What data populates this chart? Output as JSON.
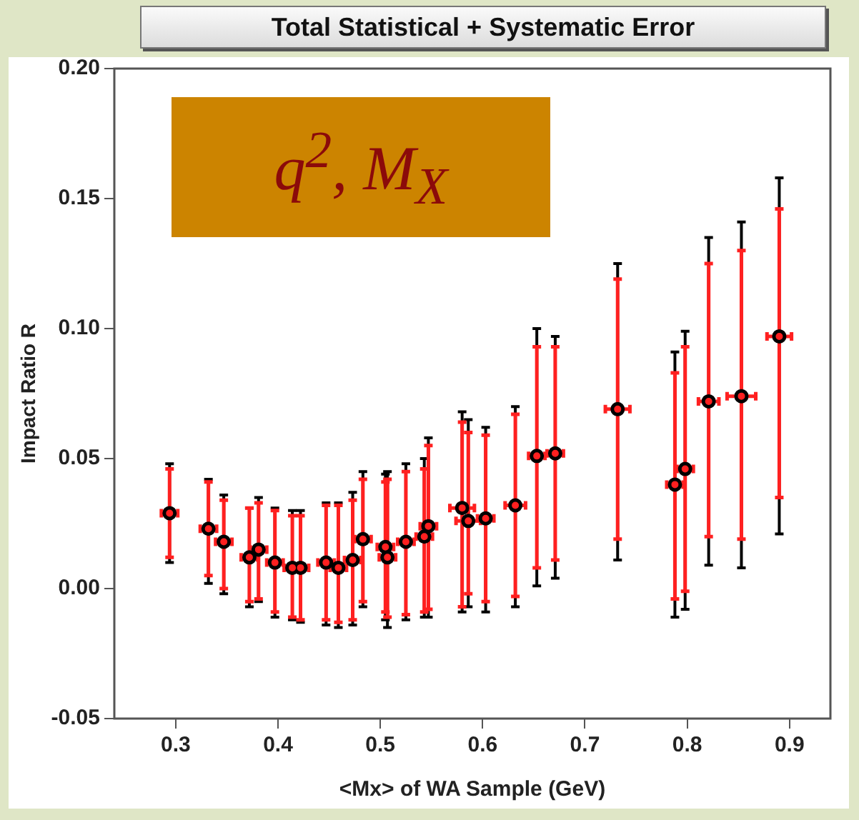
{
  "chart_data": {
    "type": "scatter",
    "title": "Total Statistical + Systematic Error",
    "xlabel": "<Mx> of WA Sample (GeV)",
    "ylabel": "Impact Ratio R",
    "annotations": [
      "q$^{2}$, M$_{X}$"
    ],
    "x": [
      0.294,
      0.332,
      0.347,
      0.372,
      0.381,
      0.397,
      0.414,
      0.422,
      0.447,
      0.459,
      0.473,
      0.483,
      0.505,
      0.507,
      0.525,
      0.543,
      0.547,
      0.58,
      0.586,
      0.603,
      0.632,
      0.653,
      0.671,
      0.732,
      0.788,
      0.798,
      0.821,
      0.853,
      0.89
    ],
    "series": [
      {
        "color": "#000000",
        "marker": "circle",
        "values": [
          0.029,
          0.023,
          0.018,
          0.012,
          0.015,
          0.01,
          0.008,
          0.008,
          0.01,
          0.008,
          0.011,
          0.019,
          0.016,
          0.012,
          0.018,
          0.02,
          0.024,
          0.031,
          0.026,
          0.027,
          0.032,
          0.051,
          0.052,
          0.069,
          0.04,
          0.046,
          0.072,
          0.074,
          0.097
        ],
        "errors": [
          [
            0.01,
            0.048
          ],
          [
            0.002,
            0.042
          ],
          [
            -0.002,
            0.036
          ],
          [
            -0.007,
            0.031
          ],
          [
            -0.005,
            0.035
          ],
          [
            -0.011,
            0.031
          ],
          [
            -0.012,
            0.03
          ],
          [
            -0.013,
            0.03
          ],
          [
            -0.014,
            0.033
          ],
          [
            -0.015,
            0.033
          ],
          [
            -0.014,
            0.037
          ],
          [
            -0.007,
            0.045
          ],
          [
            -0.012,
            0.044
          ],
          [
            -0.015,
            0.045
          ],
          [
            -0.012,
            0.048
          ],
          [
            -0.011,
            0.05
          ],
          [
            -0.011,
            0.058
          ],
          [
            -0.009,
            0.068
          ],
          [
            -0.007,
            0.065
          ],
          [
            -0.009,
            0.062
          ],
          [
            -0.007,
            0.07
          ],
          [
            0.001,
            0.1
          ],
          [
            0.004,
            0.097
          ],
          [
            0.011,
            0.125
          ],
          [
            -0.011,
            0.091
          ],
          [
            -0.008,
            0.099
          ],
          [
            0.009,
            0.135
          ],
          [
            0.008,
            0.141
          ],
          [
            0.021,
            0.158
          ]
        ]
      },
      {
        "color": "#ff2020",
        "marker": "circle",
        "values": [
          0.029,
          0.023,
          0.018,
          0.012,
          0.015,
          0.01,
          0.008,
          0.008,
          0.01,
          0.008,
          0.011,
          0.019,
          0.016,
          0.012,
          0.018,
          0.02,
          0.024,
          0.031,
          0.026,
          0.027,
          0.032,
          0.051,
          0.052,
          0.069,
          0.04,
          0.046,
          0.072,
          0.074,
          0.097
        ],
        "errors": [
          [
            0.012,
            0.046
          ],
          [
            0.005,
            0.041
          ],
          [
            0.0,
            0.034
          ],
          [
            -0.005,
            0.031
          ],
          [
            -0.004,
            0.033
          ],
          [
            -0.009,
            0.03
          ],
          [
            -0.011,
            0.028
          ],
          [
            -0.012,
            0.028
          ],
          [
            -0.012,
            0.032
          ],
          [
            -0.013,
            0.032
          ],
          [
            -0.012,
            0.034
          ],
          [
            -0.005,
            0.042
          ],
          [
            -0.009,
            0.041
          ],
          [
            -0.011,
            0.042
          ],
          [
            -0.01,
            0.045
          ],
          [
            -0.009,
            0.046
          ],
          [
            -0.008,
            0.055
          ],
          [
            -0.007,
            0.064
          ],
          [
            -0.002,
            0.06
          ],
          [
            -0.005,
            0.059
          ],
          [
            -0.003,
            0.067
          ],
          [
            0.008,
            0.093
          ],
          [
            0.011,
            0.093
          ],
          [
            0.019,
            0.119
          ],
          [
            -0.004,
            0.083
          ],
          [
            -0.001,
            0.093
          ],
          [
            0.02,
            0.125
          ],
          [
            0.019,
            0.13
          ],
          [
            0.035,
            0.146
          ]
        ],
        "xerrors": [
          0.008,
          0.008,
          0.008,
          0.008,
          0.008,
          0.008,
          0.008,
          0.008,
          0.008,
          0.008,
          0.008,
          0.008,
          0.008,
          0.008,
          0.008,
          0.008,
          0.008,
          0.012,
          0.012,
          0.008,
          0.01,
          0.008,
          0.008,
          0.012,
          0.008,
          0.008,
          0.01,
          0.014,
          0.012
        ]
      }
    ],
    "xlim": [
      0.24,
      0.94
    ],
    "xticks": [
      0.3,
      0.4,
      0.5,
      0.6,
      0.7,
      0.8,
      0.9
    ],
    "ylim": [
      -0.05,
      0.2
    ],
    "yticks": [
      {
        "value": -0.05,
        "label": "-0.05"
      },
      {
        "value": 0,
        "label": "0.00"
      },
      {
        "value": 0.05,
        "label": "0.05"
      },
      {
        "value": 0.1,
        "label": "0.10"
      },
      {
        "value": 0.15,
        "label": "0.15"
      },
      {
        "value": 0.2,
        "label": "0.20"
      }
    ]
  }
}
